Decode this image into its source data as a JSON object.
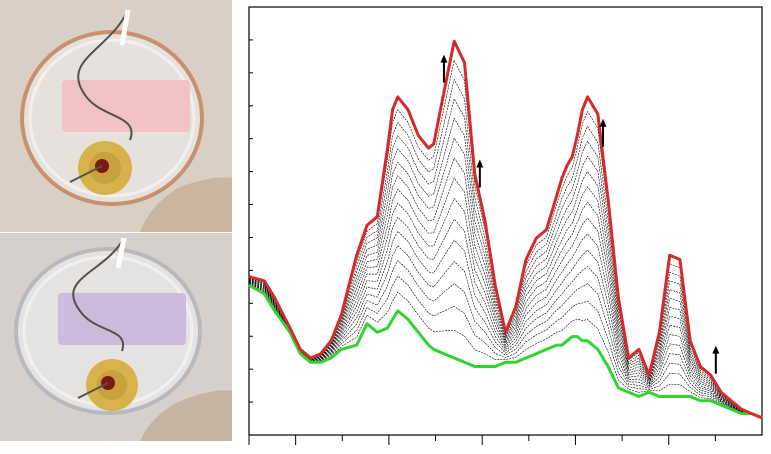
{
  "photos": [
    {
      "film_tint": "#f1bcc0",
      "container_rim": "#c9906e",
      "background": "#d9cfc4"
    },
    {
      "film_tint": "#c8b3dc",
      "container_rim": "#b7b9be",
      "background": "#d5d0cb"
    }
  ],
  "chart_data": {
    "type": "line",
    "title": "",
    "xlabel": "",
    "ylabel": "",
    "xlim": [
      0,
      100
    ],
    "ylim": [
      0,
      100
    ],
    "grid": false,
    "legend": "none",
    "x": [
      0,
      3,
      5,
      8,
      10,
      12,
      14,
      16,
      18,
      21,
      23,
      25,
      27,
      28,
      29,
      31,
      33,
      35,
      36,
      38,
      40,
      42,
      44,
      46,
      48,
      50,
      52,
      54,
      56,
      58,
      60,
      61,
      62,
      63,
      64,
      65,
      66,
      68,
      70,
      72,
      74,
      76,
      78,
      80,
      82,
      84,
      86,
      88,
      90,
      92,
      94,
      96,
      98,
      100
    ],
    "series": [
      {
        "role": "initial",
        "color": "#2fd42f",
        "values": [
          35,
          33,
          29,
          24,
          19,
          17,
          17,
          18,
          20,
          21,
          26,
          24,
          25,
          27,
          29,
          27,
          24,
          21,
          20,
          19,
          18,
          17,
          16,
          16,
          16,
          17,
          17,
          18,
          19,
          20,
          21,
          21,
          22,
          23,
          23,
          22,
          22,
          20,
          16,
          11,
          10,
          9,
          10,
          9,
          9,
          9,
          9,
          8,
          8,
          7,
          6,
          5,
          5,
          4
        ]
      },
      {
        "role": "final",
        "color": "#d42a2a",
        "values": [
          37,
          36,
          32,
          25,
          20,
          18,
          19,
          22,
          28,
          42,
          49,
          51,
          67,
          76,
          79,
          76,
          70,
          67,
          68,
          80,
          92,
          87,
          61,
          50,
          35,
          24,
          30,
          41,
          46,
          48,
          56,
          60,
          63,
          65,
          70,
          76,
          79,
          75,
          55,
          32,
          18,
          20,
          14,
          24,
          42,
          41,
          22,
          16,
          14,
          10,
          8,
          6,
          5,
          4
        ]
      }
    ],
    "intermediate_curves": {
      "count": 14,
      "color": "#000000"
    },
    "growth_arrows_at_x": [
      38,
      45,
      69,
      91
    ]
  }
}
